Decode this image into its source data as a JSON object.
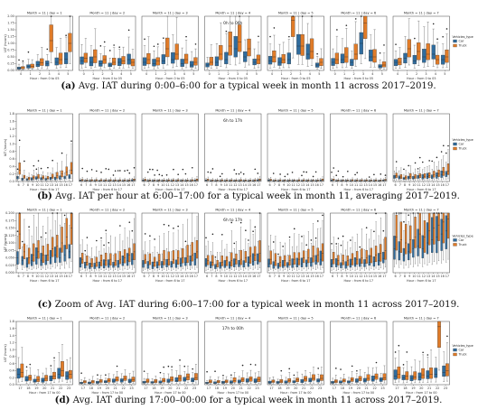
{
  "figure": {
    "panel_title_prefix": "Month = 11 | day = ",
    "days": [
      "1",
      "2",
      "3",
      "4",
      "5",
      "6",
      "7"
    ],
    "ylabel": "IAT (hours)",
    "legend_title": "Vehicles_type",
    "categories_vehicle": [
      "Car",
      "Truck"
    ],
    "colors": {
      "Car": "#2f6c9e",
      "Truck": "#e07b28"
    }
  },
  "chart_data": [
    {
      "type": "box",
      "id": "a",
      "caption_label": "(a)",
      "caption_text": " Avg. IAT during 0:00–6:00 for a typical week in month 11 across 2017–2019.",
      "annotation": "0h to 06h",
      "xlabel": "Hour : from 0 to 05",
      "x": [
        "0",
        "1",
        "2",
        "3",
        "4",
        "5"
      ],
      "ylim": [
        0,
        2.0
      ],
      "yticks": [
        "0.00",
        "0.25",
        "0.50",
        "0.75",
        "1.00",
        "1.25",
        "1.50",
        "1.75",
        "2.00"
      ],
      "series": [
        {
          "name": "Car",
          "values": [
            [
              0.08,
              0.14,
              0.22,
              0.26,
              0.3,
              0.42
            ],
            [
              0.35,
              0.3,
              0.25,
              0.2,
              0.3,
              0.4
            ],
            [
              0.3,
              0.25,
              0.35,
              0.4,
              0.25,
              0.2
            ],
            [
              0.2,
              0.3,
              0.4,
              0.8,
              0.5,
              0.3
            ],
            [
              0.35,
              0.3,
              0.4,
              0.9,
              0.6,
              0.2
            ],
            [
              0.3,
              0.4,
              0.3,
              1.0,
              0.5,
              0.15
            ],
            [
              0.3,
              0.45,
              0.35,
              0.5,
              0.6,
              0.4
            ]
          ]
        },
        {
          "name": "Truck",
          "values": [
            [
              0.1,
              0.15,
              0.28,
              1.1,
              0.4,
              1.0
            ],
            [
              0.45,
              0.5,
              0.4,
              0.3,
              0.35,
              0.3
            ],
            [
              0.4,
              0.35,
              0.8,
              0.6,
              0.4,
              0.3
            ],
            [
              0.3,
              0.6,
              0.9,
              1.05,
              0.8,
              0.4
            ],
            [
              0.5,
              0.4,
              1.85,
              0.9,
              0.7,
              0.3
            ],
            [
              0.4,
              0.5,
              0.6,
              1.75,
              0.5,
              0.2
            ],
            [
              0.3,
              0.8,
              0.7,
              0.6,
              0.4,
              0.5
            ]
          ]
        }
      ]
    },
    {
      "type": "box",
      "id": "b",
      "caption_label": "(b)",
      "caption_text": " Avg. IAT per hour at 6:00–17:00 for a typical week in month 11, averaging 2017–2019.",
      "annotation": "6h to 17h",
      "xlabel": "Hour : from 6 to 17",
      "x": [
        "6",
        "7",
        "8",
        "9",
        "10",
        "11",
        "12",
        "13",
        "14",
        "15",
        "16",
        "17"
      ],
      "ylim": [
        0,
        1.8
      ],
      "yticks": [
        "0.0",
        "0.2",
        "0.4",
        "0.6",
        "0.8",
        "1.0",
        "1.2",
        "1.4",
        "1.6",
        "1.8"
      ],
      "series": [
        {
          "name": "Car",
          "values": [
            [
              0.1,
              0.06,
              0.05,
              0.06,
              0.08,
              0.07,
              0.06,
              0.08,
              0.07,
              0.09,
              0.1,
              0.12
            ],
            [
              0.03,
              0.02,
              0.02,
              0.02,
              0.02,
              0.02,
              0.02,
              0.02,
              0.02,
              0.02,
              0.02,
              0.03
            ],
            [
              0.03,
              0.02,
              0.02,
              0.02,
              0.02,
              0.02,
              0.02,
              0.02,
              0.02,
              0.02,
              0.02,
              0.03
            ],
            [
              0.03,
              0.02,
              0.02,
              0.02,
              0.02,
              0.02,
              0.02,
              0.02,
              0.02,
              0.02,
              0.02,
              0.03
            ],
            [
              0.03,
              0.02,
              0.02,
              0.02,
              0.02,
              0.02,
              0.02,
              0.02,
              0.02,
              0.02,
              0.02,
              0.03
            ],
            [
              0.03,
              0.02,
              0.02,
              0.02,
              0.02,
              0.02,
              0.02,
              0.02,
              0.02,
              0.02,
              0.02,
              0.03
            ],
            [
              0.12,
              0.1,
              0.08,
              0.1,
              0.09,
              0.12,
              0.11,
              0.13,
              0.12,
              0.15,
              0.18,
              0.2
            ]
          ]
        },
        {
          "name": "Truck",
          "values": [
            [
              0.3,
              0.12,
              0.08,
              0.1,
              0.12,
              0.1,
              0.09,
              0.12,
              0.15,
              0.2,
              0.25,
              0.3
            ],
            [
              0.04,
              0.03,
              0.03,
              0.03,
              0.03,
              0.03,
              0.03,
              0.03,
              0.03,
              0.03,
              0.03,
              0.04
            ],
            [
              0.04,
              0.03,
              0.03,
              0.03,
              0.03,
              0.03,
              0.03,
              0.03,
              0.03,
              0.03,
              0.03,
              0.04
            ],
            [
              0.04,
              0.03,
              0.03,
              0.03,
              0.03,
              0.03,
              0.03,
              0.03,
              0.03,
              0.03,
              0.03,
              0.04
            ],
            [
              0.04,
              0.03,
              0.03,
              0.03,
              0.03,
              0.03,
              0.03,
              0.03,
              0.03,
              0.03,
              0.03,
              0.04
            ],
            [
              0.04,
              0.03,
              0.03,
              0.03,
              0.03,
              0.03,
              0.03,
              0.03,
              0.03,
              0.03,
              0.03,
              0.04
            ],
            [
              0.15,
              0.12,
              0.1,
              0.14,
              0.12,
              0.15,
              0.14,
              0.16,
              0.18,
              0.2,
              0.25,
              0.28
            ]
          ]
        }
      ]
    },
    {
      "type": "box",
      "id": "c",
      "caption_label": "(c)",
      "caption_text": " Zoom of Avg. IAT during 6:00–17:00 for a typical week in month 11 across 2017–2019.",
      "annotation": "6h to 17h",
      "xlabel": "Hour : from 6 to 17",
      "x": [
        "6",
        "7",
        "8",
        "9",
        "10",
        "11",
        "12",
        "13",
        "14",
        "15",
        "16",
        "17"
      ],
      "ylim": [
        0,
        0.2
      ],
      "yticks": [
        "0.000",
        "0.025",
        "0.050",
        "0.075",
        "0.100",
        "0.125",
        "0.150",
        "0.175",
        "0.200"
      ],
      "series": [
        {
          "name": "Car",
          "values": [
            [
              0.05,
              0.04,
              0.03,
              0.04,
              0.05,
              0.04,
              0.04,
              0.05,
              0.06,
              0.05,
              0.06,
              0.07
            ],
            [
              0.03,
              0.025,
              0.02,
              0.022,
              0.025,
              0.028,
              0.03,
              0.025,
              0.03,
              0.035,
              0.04,
              0.045
            ],
            [
              0.03,
              0.025,
              0.022,
              0.025,
              0.028,
              0.03,
              0.028,
              0.03,
              0.032,
              0.035,
              0.04,
              0.045
            ],
            [
              0.03,
              0.025,
              0.02,
              0.022,
              0.025,
              0.025,
              0.028,
              0.03,
              0.03,
              0.035,
              0.038,
              0.042
            ],
            [
              0.03,
              0.025,
              0.022,
              0.025,
              0.025,
              0.028,
              0.03,
              0.03,
              0.032,
              0.035,
              0.04,
              0.045
            ],
            [
              0.03,
              0.028,
              0.025,
              0.025,
              0.028,
              0.03,
              0.03,
              0.032,
              0.035,
              0.038,
              0.04,
              0.048
            ],
            [
              0.08,
              0.07,
              0.06,
              0.07,
              0.08,
              0.09,
              0.08,
              0.1,
              0.11,
              0.12,
              0.13,
              0.14
            ]
          ]
        },
        {
          "name": "Truck",
          "values": [
            [
              0.13,
              0.07,
              0.05,
              0.06,
              0.07,
              0.06,
              0.06,
              0.08,
              0.09,
              0.1,
              0.12,
              0.15
            ],
            [
              0.045,
              0.035,
              0.03,
              0.035,
              0.04,
              0.04,
              0.045,
              0.04,
              0.045,
              0.05,
              0.06,
              0.07
            ],
            [
              0.045,
              0.04,
              0.035,
              0.04,
              0.045,
              0.045,
              0.045,
              0.05,
              0.05,
              0.055,
              0.06,
              0.07
            ],
            [
              0.04,
              0.035,
              0.03,
              0.035,
              0.04,
              0.04,
              0.045,
              0.045,
              0.05,
              0.055,
              0.06,
              0.065
            ],
            [
              0.045,
              0.04,
              0.035,
              0.04,
              0.04,
              0.045,
              0.045,
              0.05,
              0.05,
              0.055,
              0.06,
              0.065
            ],
            [
              0.045,
              0.04,
              0.04,
              0.04,
              0.045,
              0.045,
              0.05,
              0.05,
              0.055,
              0.06,
              0.065,
              0.075
            ],
            [
              0.12,
              0.11,
              0.1,
              0.11,
              0.12,
              0.13,
              0.12,
              0.14,
              0.15,
              0.16,
              0.17,
              0.18
            ]
          ]
        }
      ]
    },
    {
      "type": "box",
      "id": "d",
      "caption_label": "(d)",
      "caption_text": " Avg. IAT during 17:00–00:00 for a typical week in month 11 across 2017–2019.",
      "annotation": "17h to 00h",
      "xlabel": "Hour : from 17 to 00",
      "x": [
        "17",
        "18",
        "19",
        "20",
        "21",
        "22",
        "23"
      ],
      "ylim": [
        0,
        1.8
      ],
      "yticks": [
        "0.0",
        "0.2",
        "0.4",
        "0.6",
        "0.8",
        "1.0",
        "1.2",
        "1.4",
        "1.6",
        "1.8"
      ],
      "series": [
        {
          "name": "Car",
          "values": [
            [
              0.3,
              0.15,
              0.1,
              0.12,
              0.18,
              0.3,
              0.25
            ],
            [
              0.05,
              0.05,
              0.06,
              0.08,
              0.1,
              0.12,
              0.1
            ],
            [
              0.06,
              0.06,
              0.07,
              0.1,
              0.12,
              0.15,
              0.12
            ],
            [
              0.05,
              0.05,
              0.06,
              0.07,
              0.08,
              0.1,
              0.1
            ],
            [
              0.06,
              0.06,
              0.07,
              0.08,
              0.1,
              0.12,
              0.12
            ],
            [
              0.06,
              0.07,
              0.08,
              0.1,
              0.12,
              0.15,
              0.14
            ],
            [
              0.25,
              0.2,
              0.18,
              0.22,
              0.25,
              0.3,
              0.35
            ]
          ]
        },
        {
          "name": "Truck",
          "values": [
            [
              0.35,
              0.2,
              0.15,
              0.18,
              0.25,
              0.4,
              0.3
            ],
            [
              0.08,
              0.08,
              0.1,
              0.12,
              0.15,
              0.18,
              0.15
            ],
            [
              0.1,
              0.1,
              0.12,
              0.15,
              0.18,
              0.22,
              0.2
            ],
            [
              0.08,
              0.08,
              0.1,
              0.12,
              0.14,
              0.16,
              0.15
            ],
            [
              0.1,
              0.1,
              0.12,
              0.14,
              0.16,
              0.18,
              0.18
            ],
            [
              0.1,
              0.12,
              0.14,
              0.16,
              0.18,
              0.22,
              0.2
            ],
            [
              0.3,
              0.25,
              0.22,
              0.28,
              0.3,
              1.65,
              0.4
            ]
          ]
        }
      ]
    }
  ]
}
